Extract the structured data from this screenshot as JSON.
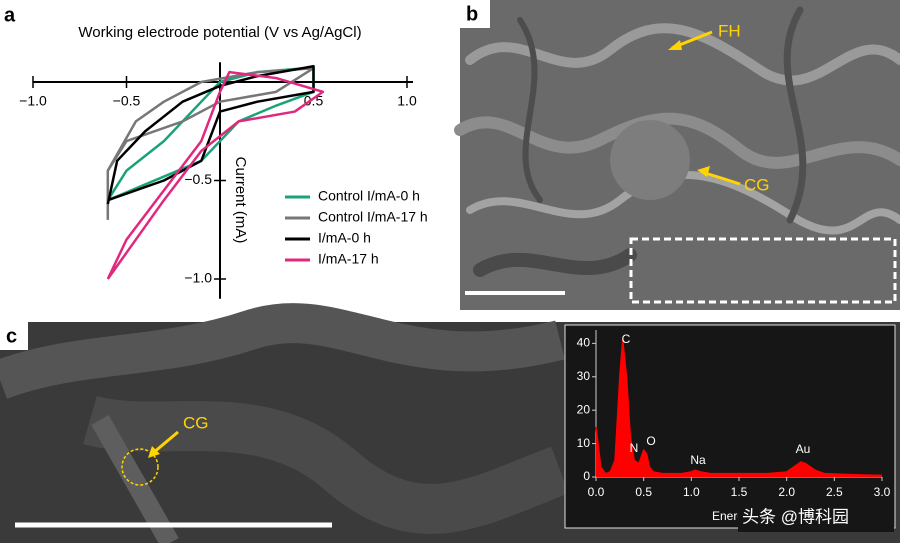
{
  "panels": {
    "a": "a",
    "b": "b",
    "c": "c"
  },
  "sem_b": {
    "labels": [
      "FH",
      "CG"
    ]
  },
  "sem_c": {
    "label": "CG"
  },
  "watermark": "头条 @博科园",
  "chart_data": [
    {
      "type": "line",
      "title": "Working electrode potential (V vs Ag/AgCl)",
      "y_label": "Current (mA)",
      "xlim": [
        -1.0,
        1.0
      ],
      "ylim": [
        -1.1,
        0.1
      ],
      "xticks": [
        {
          "value": -1.0,
          "label": "−1.0"
        },
        {
          "value": -0.5,
          "label": "−0.5"
        },
        0.5,
        {
          "value": 1.0,
          "label": "1.0"
        }
      ],
      "yticks": [
        {
          "value": -0.5,
          "label": "−0.5"
        },
        {
          "value": -1.0,
          "label": "−1.0"
        }
      ],
      "series": [
        {
          "name": "Control I/mA-0 h",
          "color": "#1aa37a",
          "x": [
            -0.6,
            -0.5,
            -0.3,
            -0.1,
            0.0,
            0.2,
            0.45,
            0.5,
            0.5,
            0.3,
            0.1,
            -0.1,
            -0.3,
            -0.6
          ],
          "y": [
            -0.6,
            -0.45,
            -0.3,
            -0.1,
            0.0,
            0.05,
            0.07,
            0.08,
            -0.05,
            -0.12,
            -0.2,
            -0.4,
            -0.48,
            -0.6
          ]
        },
        {
          "name": "Control I/mA-17 h",
          "color": "#777777",
          "x": [
            -0.6,
            -0.45,
            -0.3,
            -0.1,
            0.2,
            0.5,
            0.3,
            0.0,
            -0.2,
            -0.5,
            -0.6,
            -0.6
          ],
          "y": [
            -0.45,
            -0.2,
            -0.1,
            0.0,
            0.05,
            0.07,
            -0.05,
            -0.1,
            -0.2,
            -0.3,
            -0.45,
            -0.7
          ]
        },
        {
          "name": "I/mA-0 h",
          "color": "#000000",
          "x": [
            -0.6,
            -0.55,
            -0.4,
            -0.2,
            0.0,
            0.2,
            0.5,
            0.5,
            0.2,
            0.0,
            -0.1,
            -0.3,
            -0.6
          ],
          "y": [
            -0.62,
            -0.4,
            -0.25,
            -0.1,
            -0.02,
            0.03,
            0.08,
            -0.05,
            -0.1,
            -0.15,
            -0.4,
            -0.5,
            -0.6
          ]
        },
        {
          "name": "I/mA-17 h",
          "color": "#e0287f",
          "x": [
            -0.6,
            -0.5,
            -0.3,
            -0.1,
            0.0,
            0.05,
            0.3,
            0.55,
            0.4,
            0.1,
            -0.1,
            -0.3,
            -0.6
          ],
          "y": [
            -1.0,
            -0.8,
            -0.55,
            -0.3,
            -0.05,
            0.05,
            0.02,
            -0.05,
            -0.15,
            -0.2,
            -0.35,
            -0.6,
            -1.0
          ]
        }
      ]
    },
    {
      "type": "area",
      "x_label": "Energy (keV)",
      "color": "#ff0000",
      "xlim": [
        0.0,
        3.0
      ],
      "ylim": [
        0,
        44
      ],
      "xticks": [
        {
          "value": 0.0,
          "label": "0.0"
        },
        0.5,
        {
          "value": 1.0,
          "label": "1.0"
        },
        1.5,
        {
          "value": 2.0,
          "label": "2.0"
        },
        2.5,
        {
          "value": 3.0,
          "label": "3.0"
        }
      ],
      "yticks": [
        0,
        10,
        20,
        30,
        40
      ],
      "annotations": [
        "C",
        "N",
        "O",
        "Na",
        "Au"
      ],
      "x": [
        0.0,
        0.05,
        0.1,
        0.15,
        0.2,
        0.25,
        0.28,
        0.32,
        0.36,
        0.4,
        0.45,
        0.5,
        0.53,
        0.56,
        0.6,
        0.7,
        0.8,
        0.9,
        1.0,
        1.04,
        1.1,
        1.2,
        1.4,
        1.6,
        1.8,
        2.0,
        2.1,
        2.15,
        2.2,
        2.3,
        2.4,
        2.6,
        2.8,
        3.0
      ],
      "values": [
        15,
        3,
        1,
        1.5,
        5,
        30,
        41,
        30,
        12,
        5,
        4,
        8,
        7,
        3,
        1.5,
        1,
        1,
        1,
        1.5,
        2,
        1.5,
        1,
        1,
        1,
        1,
        1.5,
        3.5,
        4.5,
        4,
        2,
        1,
        0.8,
        0.6,
        0.5
      ]
    }
  ]
}
